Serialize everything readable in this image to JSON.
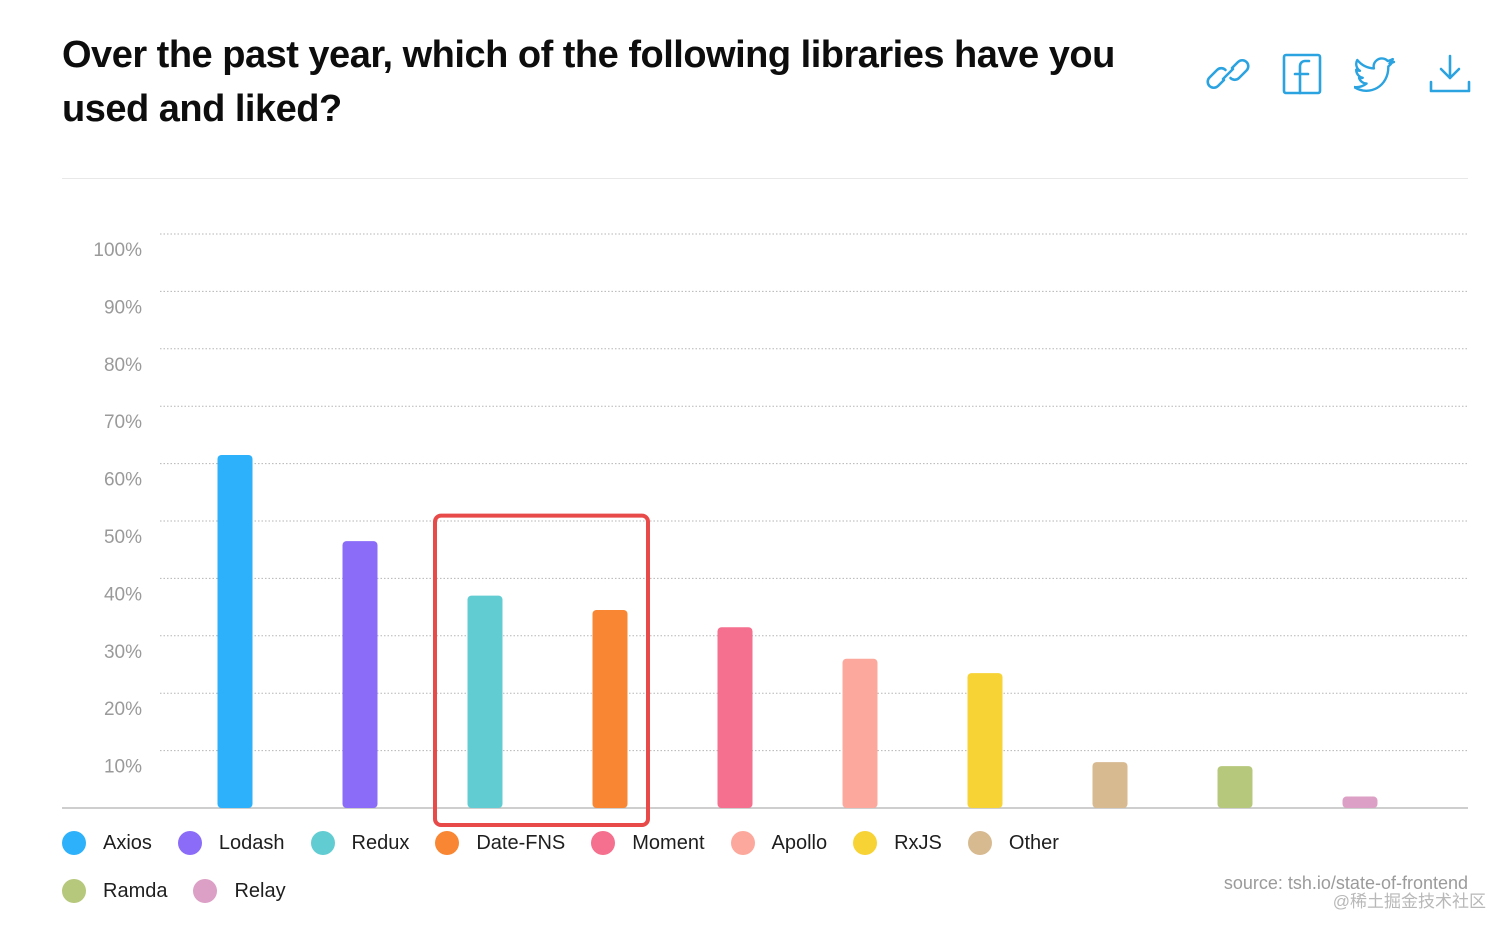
{
  "header": {
    "title": "Over the past year, which of the following libraries have you used and liked?",
    "actions": [
      {
        "name": "link-icon"
      },
      {
        "name": "facebook-icon"
      },
      {
        "name": "twitter-icon"
      },
      {
        "name": "download-icon"
      }
    ],
    "accent": "#2aa3e0"
  },
  "chart_data": {
    "type": "bar",
    "title": "Over the past year, which of the following libraries have you used and liked?",
    "xlabel": "",
    "ylabel": "",
    "ylim": [
      0,
      100
    ],
    "yticks": [
      "100%",
      "90%",
      "80%",
      "70%",
      "60%",
      "50%",
      "40%",
      "30%",
      "20%",
      "10%"
    ],
    "grid": true,
    "legend_position": "bottom-left",
    "categories": [
      "Axios",
      "Lodash",
      "Redux",
      "Date-FNS",
      "Moment",
      "Apollo",
      "RxJS",
      "Other",
      "Ramda",
      "Relay"
    ],
    "values": [
      61.5,
      46.5,
      37,
      34.5,
      31.5,
      26,
      23.5,
      8,
      7.3,
      2
    ],
    "colors": [
      "#2eb1fb",
      "#8a6cf8",
      "#61cdd3",
      "#f88632",
      "#f56f8e",
      "#fda89c",
      "#f7d335",
      "#d7ba90",
      "#b6c87b",
      "#dc9fc5"
    ],
    "highlight": {
      "categories": [
        "Redux",
        "Date-FNS"
      ],
      "color": "#e84a4a"
    }
  },
  "footer": {
    "source": "source: tsh.io/state-of-frontend",
    "watermark": "@稀土掘金技术社区"
  }
}
